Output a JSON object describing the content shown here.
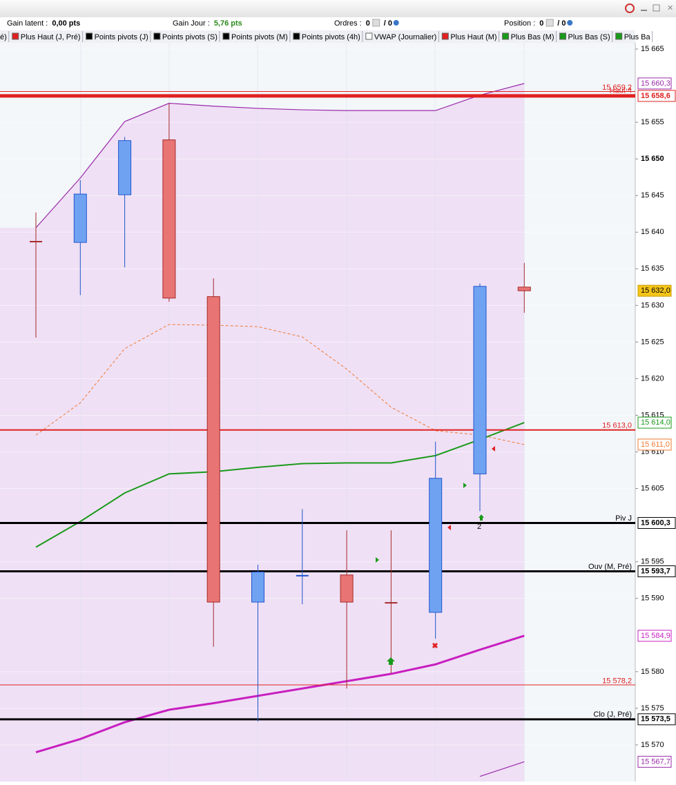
{
  "toolbar": {
    "items": [
      {
        "label": "Gain latent :",
        "value": "0,00 pts",
        "color": "#000000"
      },
      {
        "label": "Gain Jour :",
        "value": "5,76 pts",
        "color": "#2a8a1a"
      },
      {
        "label": "Ordres :",
        "value": "0",
        "extra": "/ 0"
      },
      {
        "label": "Position :",
        "value": "0",
        "extra": "/ 0"
      }
    ]
  },
  "legend_tabs": [
    {
      "text": "é)",
      "color": null
    },
    {
      "text": "Plus Haut (J, Pré)",
      "color": "#e02020"
    },
    {
      "text": "Points pivots (J)",
      "color": "#000000"
    },
    {
      "text": "Points pivots (S)",
      "color": "#000000"
    },
    {
      "text": "Points pivots (M)",
      "color": "#000000"
    },
    {
      "text": "Points pivots (4h)",
      "color": "#000000"
    },
    {
      "text": "VWAP (Journalier)",
      "color": "#ffffff"
    },
    {
      "text": "Plus Haut (M)",
      "color": "#e02020"
    },
    {
      "text": "Plus Bas (M)",
      "color": "#1a9a1a"
    },
    {
      "text": "Plus Bas (S)",
      "color": "#1a9a1a"
    },
    {
      "text": "Plus Ba",
      "color": "#1a9a1a"
    }
  ],
  "chart_data": {
    "type": "candlestick",
    "ylim": [
      15565.0,
      15665.85
    ],
    "yticks": [
      {
        "value": 15570,
        "label": "15 570"
      },
      {
        "value": 15575,
        "label": "15 575"
      },
      {
        "value": 15580,
        "label": "15 580"
      },
      {
        "value": 15590,
        "label": "15 590"
      },
      {
        "value": 15595,
        "label": "15 595"
      },
      {
        "value": 15605,
        "label": "15 605"
      },
      {
        "value": 15610,
        "label": "15 610"
      },
      {
        "value": 15615,
        "label": "15 615"
      },
      {
        "value": 15620,
        "label": "15 620"
      },
      {
        "value": 15625,
        "label": "15 625"
      },
      {
        "value": 15630,
        "label": "15 630"
      },
      {
        "value": 15635,
        "label": "15 635"
      },
      {
        "value": 15640,
        "label": "15 640"
      },
      {
        "value": 15645,
        "label": "15 645"
      },
      {
        "value": 15650,
        "label": "15 650"
      },
      {
        "value": 15655,
        "label": "15 655"
      },
      {
        "value": 15665,
        "label": "15 665"
      }
    ],
    "open": [
      15638.7,
      15638.6,
      15645.1,
      15652.6,
      15631.2,
      15589.5,
      15593.1,
      15593.2,
      15589.4,
      15588.1,
      15607.0,
      15632.5
    ],
    "high": [
      15642.7,
      15647.1,
      15653.0,
      15657.6,
      15633.7,
      15594.6,
      15602.2,
      15599.3,
      15599.3,
      15611.4,
      15633.0,
      15635.8
    ],
    "low": [
      15625.6,
      15631.4,
      15635.2,
      15630.5,
      15583.4,
      15573.2,
      15589.2,
      15577.7,
      15579.8,
      15584.5,
      15601.9,
      15629.0
    ],
    "close": [
      15638.7,
      15645.2,
      15652.5,
      15631.0,
      15589.5,
      15593.6,
      15593.1,
      15589.5,
      15589.4,
      15606.4,
      15632.6,
      15632.0
    ],
    "colors": [
      "#a52a2a",
      "#6fa3f2",
      "#6fa3f2",
      "#e87474",
      "#e87474",
      "#6fa3f2",
      "#2255cc",
      "#e87474",
      "#a52a2a",
      "#6fa3f2",
      "#6fa3f2",
      "#e87474"
    ],
    "last_label": "15 632,0",
    "series": [
      {
        "color": "#9a2aaa",
        "width": 1.2,
        "dash": false,
        "fill": "#efe0f5",
        "last_label": "15 660,3",
        "values": [
          15640.6,
          15647.4,
          15655.1,
          15657.6,
          15657.2,
          15656.9,
          15656.7,
          15656.6,
          15656.6,
          15656.6,
          15658.7,
          15660.3
        ]
      },
      {
        "color": "#9a2aaa",
        "width": 1.2,
        "dash": false,
        "last_label": "15 567,7",
        "values": [
          null,
          null,
          null,
          null,
          null,
          null,
          null,
          null,
          null,
          null,
          15565.7,
          15567.7
        ]
      },
      {
        "color": "#f07830",
        "width": 1,
        "dash": true,
        "last_label": "15 611,0",
        "values": [
          15612.3,
          15616.7,
          15624.1,
          15627.4,
          15627.3,
          15627.1,
          15625.7,
          15621.3,
          15616.1,
          15612.9,
          15612.3,
          15611.0
        ]
      },
      {
        "color": "#1a9a1a",
        "width": 2,
        "dash": false,
        "last_label": "15 614,0",
        "values": [
          15597.0,
          15600.5,
          15604.4,
          15607.0,
          15607.3,
          15607.9,
          15608.4,
          15608.5,
          15608.5,
          15609.5,
          15611.7,
          15614.0
        ]
      },
      {
        "color": "#c81ec0",
        "width": 3,
        "dash": false,
        "last_label": "15 584,9",
        "values": [
          15569.0,
          15570.8,
          15573.1,
          15574.8,
          15575.7,
          15576.7,
          15577.7,
          15578.7,
          15579.7,
          15581.0,
          15583.0,
          15584.9
        ]
      }
    ],
    "levels": [
      {
        "value": 15659.2,
        "color": "#e02020",
        "width": 1,
        "text": "15 659,2"
      },
      {
        "value": 15658.6,
        "color": "#e02020",
        "width": 5,
        "text": "Haut 4",
        "box": "15 658,6"
      },
      {
        "value": 15613.0,
        "color": "#e02020",
        "width": 2,
        "text": "15 613,0"
      },
      {
        "value": 15600.3,
        "color": "#000000",
        "width": 3,
        "text": "Piv J",
        "box": "15 600,3"
      },
      {
        "value": 15593.7,
        "color": "#000000",
        "width": 3,
        "text": "Ouv (M, Pré)",
        "box": "15 593,7"
      },
      {
        "value": 15578.2,
        "color": "#e02020",
        "width": 1,
        "text": "15 578,2"
      },
      {
        "value": 15573.5,
        "color": "#000000",
        "width": 3,
        "text": "Clo (J, Pré)",
        "box": "15 573,5"
      }
    ],
    "annotations": [
      "2"
    ]
  }
}
